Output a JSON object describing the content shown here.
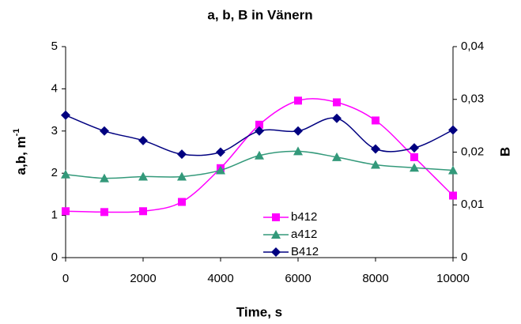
{
  "chart_data": {
    "type": "line",
    "title": "a, b, B  in Vänern",
    "xlabel": "Time, s",
    "ylabel": "a,b, m",
    "ylabel_sup": "-1",
    "y2label": "B",
    "x": [
      0,
      1000,
      2000,
      3000,
      4000,
      5000,
      6000,
      7000,
      8000,
      9000,
      10000
    ],
    "xlim": [
      0,
      10000
    ],
    "xticks": [
      0,
      2000,
      4000,
      6000,
      8000,
      10000
    ],
    "ylim": [
      0,
      5
    ],
    "yticks": [
      0,
      1,
      2,
      3,
      4,
      5
    ],
    "y2lim": [
      0,
      0.04
    ],
    "y2ticks": [
      0,
      {
        "value": 0.01,
        "label": "0,01"
      },
      {
        "value": 0.02,
        "label": "0,02"
      },
      {
        "value": 0.03,
        "label": "0,03"
      },
      {
        "value": 0.04,
        "label": "0,04"
      }
    ],
    "series": [
      {
        "name": "b412",
        "color": "#ff00ff",
        "marker": "square",
        "values": [
          1.1,
          1.08,
          1.1,
          1.32,
          2.12,
          3.15,
          3.72,
          3.68,
          3.25,
          2.38,
          1.47
        ]
      },
      {
        "name": "a412",
        "color": "#33997a",
        "marker": "triangle",
        "values": [
          1.97,
          1.88,
          1.92,
          1.92,
          2.07,
          2.42,
          2.52,
          2.38,
          2.2,
          2.13,
          2.07
        ]
      },
      {
        "name": "B412",
        "color": "#000080",
        "marker": "diamond",
        "axis": "y2",
        "values": [
          0.027,
          0.024,
          0.0222,
          0.0196,
          0.02,
          0.024,
          0.024,
          0.0264,
          0.0206,
          0.0208,
          0.0242
        ]
      }
    ]
  }
}
